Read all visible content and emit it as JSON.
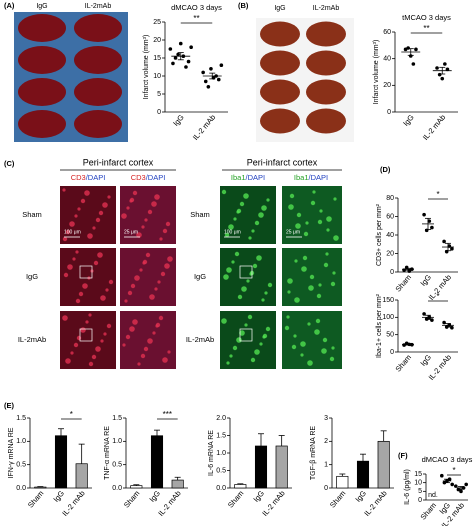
{
  "panel_labels": [
    "(A)",
    "(B)",
    "(C)",
    "(D)",
    "(E)",
    "(F)"
  ],
  "panel_a_image": {
    "labels": [
      "IgG",
      "IL-2mAb"
    ]
  },
  "panel_b_image": {
    "labels": [
      "IgG",
      "IL-2mAb"
    ]
  },
  "panel_c": {
    "headers": [
      "Peri-infarct cortex",
      "Peri-infarct cortex"
    ],
    "channels": [
      {
        "marker": "CD3",
        "stain": "/DAPI"
      },
      {
        "marker": "CD3",
        "stain": "/DAPI"
      },
      {
        "marker": "Iba1",
        "stain": "/DAPI"
      },
      {
        "marker": "Iba1",
        "stain": "/DAPI"
      }
    ],
    "row_labels_left": [
      "Sham",
      "IgG",
      "IL-2mAb"
    ],
    "row_labels_right": [
      "Sham",
      "IgG",
      "IL-2mAb"
    ],
    "scale_bars": [
      "100 μm",
      "25 μm",
      "100 μm",
      "25 μm"
    ]
  },
  "chart_data": [
    {
      "type": "dot",
      "title": "dMCAO 3 days",
      "ylabel": "Infarct volume (mm³)",
      "categories": [
        "IgG",
        "IL-2 mAb"
      ],
      "points": [
        [
          17.5,
          13.5,
          15,
          16,
          19,
          15.5,
          12.5,
          14,
          18
        ],
        [
          11,
          8.5,
          7,
          12,
          9.5,
          10,
          9,
          13
        ]
      ],
      "means": [
        15.5,
        10
      ],
      "errors": [
        1.0,
        0.8
      ],
      "ylim": [
        0,
        25
      ],
      "yticks": [
        0,
        5,
        10,
        15,
        20,
        25
      ],
      "annotation": "**"
    },
    {
      "type": "dot",
      "title": "tMCAO 3 days",
      "ylabel": "Infarct volume (mm³)",
      "categories": [
        "IgG",
        "IL-2 mAb"
      ],
      "points": [
        [
          47,
          48,
          42,
          36,
          47
        ],
        [
          33,
          28,
          25,
          36,
          32
        ]
      ],
      "means": [
        45,
        31
      ],
      "errors": [
        2.5,
        2.5
      ],
      "ylim": [
        0,
        60
      ],
      "yticks": [
        0,
        20,
        40,
        60
      ],
      "annotation": "**"
    },
    {
      "type": "dot",
      "ylabel": "CD3+ cells per mm²",
      "categories": [
        "Sham",
        "IgG",
        "IL-2 mAb"
      ],
      "points": [
        [
          2,
          5,
          1,
          3
        ],
        [
          62,
          45,
          55,
          48
        ],
        [
          33,
          22,
          28,
          25
        ]
      ],
      "means": [
        3,
        52,
        27
      ],
      "errors": [
        1,
        6,
        4
      ],
      "ylim": [
        0,
        80
      ],
      "yticks": [
        0,
        20,
        40,
        60,
        80
      ],
      "annotation": "*"
    },
    {
      "type": "dot",
      "ylabel": "Iba-1+ cells per mm²",
      "categories": [
        "Sham",
        "IgG",
        "IL-2 mAb"
      ],
      "points": [
        [
          20,
          25,
          22,
          21
        ],
        [
          110,
          95,
          100,
          92
        ],
        [
          85,
          72,
          78,
          70
        ]
      ],
      "means": [
        22,
        100,
        77
      ],
      "errors": [
        2,
        6,
        5
      ],
      "ylim": [
        0,
        150
      ],
      "yticks": [
        0,
        50,
        100,
        150
      ],
      "annotation": "*"
    },
    {
      "type": "bar",
      "ylabel": "IFN-γ mRNA RE",
      "categories": [
        "Sham",
        "IgG",
        "IL-2 mAb"
      ],
      "values": [
        0.02,
        1.12,
        0.52
      ],
      "errors": [
        0.01,
        0.15,
        0.42
      ],
      "colors": [
        "#ffffff",
        "#000000",
        "#a6a6a6"
      ],
      "ylim": [
        0,
        1.5
      ],
      "yticks": [
        {
          "value": 0,
          "label": "0.0"
        },
        0.5,
        {
          "value": 1,
          "label": "1.0"
        },
        1.5
      ],
      "annotation": "*"
    },
    {
      "type": "bar",
      "ylabel": "TNF-α  mRNA RE",
      "categories": [
        "Sham",
        "IgG",
        "IL-2 mAb"
      ],
      "values": [
        0.05,
        1.12,
        0.17
      ],
      "errors": [
        0.02,
        0.12,
        0.06
      ],
      "colors": [
        "#ffffff",
        "#000000",
        "#a6a6a6"
      ],
      "ylim": [
        0,
        1.5
      ],
      "yticks": [
        {
          "value": 0,
          "label": "0.0"
        },
        0.5,
        {
          "value": 1,
          "label": "1.0"
        },
        1.5
      ],
      "annotation": "***"
    },
    {
      "type": "bar",
      "ylabel": "IL-6 mRNA RE",
      "categories": [
        "Sham",
        "IgG",
        "IL-2 mAb"
      ],
      "values": [
        0.1,
        1.2,
        1.2
      ],
      "errors": [
        0.02,
        0.35,
        0.3
      ],
      "colors": [
        "#ffffff",
        "#000000",
        "#a6a6a6"
      ],
      "ylim": [
        0,
        2
      ],
      "yticks": [
        {
          "value": 0,
          "label": "0.0"
        },
        0.5,
        {
          "value": 1,
          "label": "1.0"
        },
        1.5,
        {
          "value": 2,
          "label": "2.0"
        }
      ]
    },
    {
      "type": "bar",
      "ylabel": "TGF-β mRNA RE",
      "categories": [
        "Sham",
        "IgG",
        "IL-2 mAb"
      ],
      "values": [
        0.5,
        1.15,
        2.0
      ],
      "errors": [
        0.1,
        0.3,
        0.45
      ],
      "colors": [
        "#ffffff",
        "#000000",
        "#a6a6a6"
      ],
      "ylim": [
        0,
        3
      ],
      "yticks": [
        0,
        1,
        2,
        3
      ]
    },
    {
      "type": "dot",
      "title": "dMCAO 3 days",
      "ylabel": "IL-6 (pg/ml)",
      "categories": [
        "Sham",
        "IgG",
        "IL-2 mAb"
      ],
      "points": [
        [],
        [
          14,
          10,
          11,
          12,
          9
        ],
        [
          8,
          6,
          5,
          7,
          9
        ]
      ],
      "means": [
        null,
        11,
        7
      ],
      "errors": [
        null,
        1,
        0.8
      ],
      "missing_label": "nd.",
      "ylim": [
        0,
        15
      ],
      "yticks": [
        0,
        5,
        10,
        15
      ],
      "annotation": "*"
    }
  ]
}
